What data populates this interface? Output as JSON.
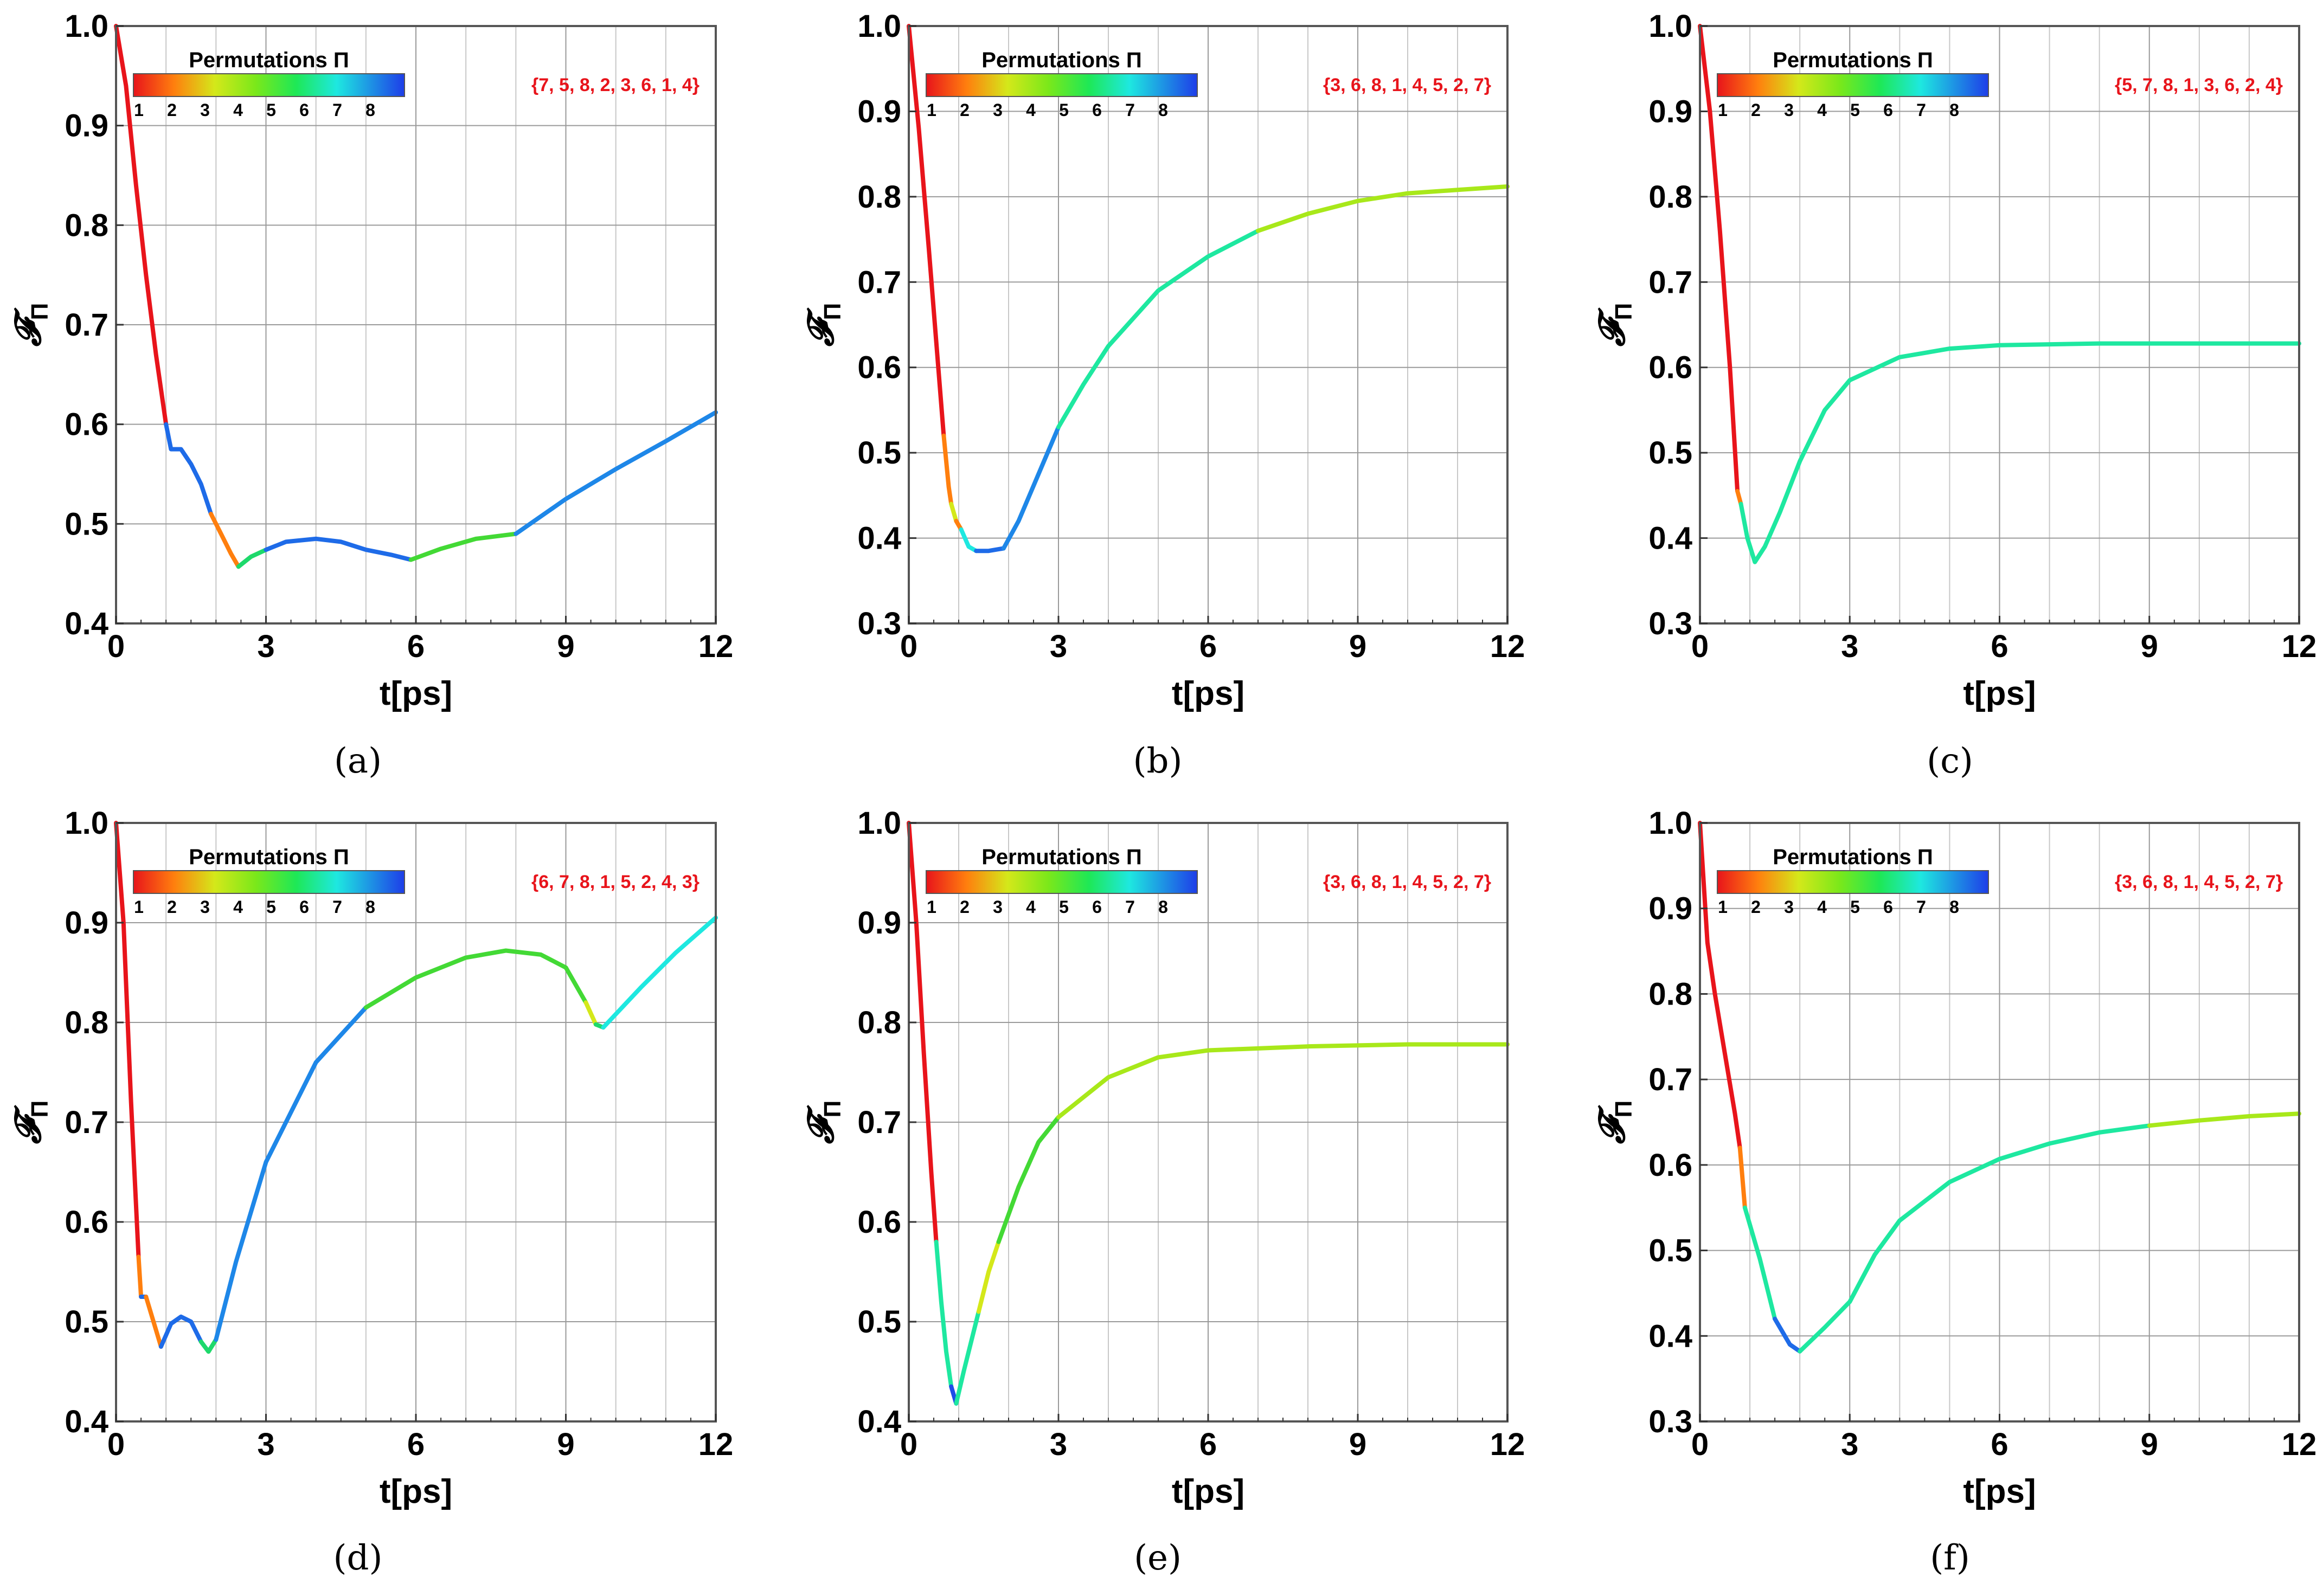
{
  "figure": {
    "xlabel": "t[ps]",
    "ylabel": "𝓕",
    "ylabel_sub": "Π",
    "legend_title": "Permutations Π",
    "legend_numbers": [
      "1",
      "2",
      "3",
      "4",
      "5",
      "6",
      "7",
      "8"
    ],
    "legend_colors": [
      "#e8141b",
      "#ff7f0e",
      "#d4e81a",
      "#7be81a",
      "#1ee856",
      "#1ee8c3",
      "#1ea0f0",
      "#1e4de8"
    ]
  },
  "chart_data": [
    {
      "id": "a",
      "type": "line",
      "caption": "(a)",
      "permutation": "{7, 5, 8, 2, 3, 6, 1, 4}",
      "xlim": [
        0,
        12
      ],
      "ylim": [
        0.4,
        1.0
      ],
      "xticks": [
        "0",
        "3",
        "6",
        "9",
        "12"
      ],
      "yticks": [
        "0.4",
        "0.5",
        "0.6",
        "0.7",
        "0.8",
        "0.9",
        "1.0"
      ],
      "xlabel": "t[ps]",
      "ylabel": "𝓕Π",
      "segments": [
        {
          "color": "#e8141b",
          "points": [
            [
              0,
              1.0
            ],
            [
              0.2,
              0.94
            ],
            [
              0.4,
              0.84
            ],
            [
              0.6,
              0.75
            ],
            [
              0.8,
              0.67
            ],
            [
              1.0,
              0.6
            ]
          ]
        },
        {
          "color": "#1e6be8",
          "points": [
            [
              1.0,
              0.6
            ],
            [
              1.1,
              0.575
            ],
            [
              1.3,
              0.575
            ],
            [
              1.5,
              0.56
            ],
            [
              1.7,
              0.54
            ],
            [
              1.9,
              0.51
            ]
          ]
        },
        {
          "color": "#ff7f0e",
          "points": [
            [
              1.9,
              0.51
            ],
            [
              2.1,
              0.49
            ],
            [
              2.3,
              0.47
            ],
            [
              2.45,
              0.457
            ]
          ]
        },
        {
          "color": "#1ed96b",
          "points": [
            [
              2.45,
              0.457
            ],
            [
              2.7,
              0.467
            ],
            [
              3.0,
              0.474
            ]
          ]
        },
        {
          "color": "#1e6be8",
          "points": [
            [
              3.0,
              0.474
            ],
            [
              3.4,
              0.482
            ],
            [
              4.0,
              0.485
            ],
            [
              4.5,
              0.482
            ],
            [
              5.0,
              0.474
            ],
            [
              5.5,
              0.469
            ],
            [
              5.9,
              0.464
            ]
          ]
        },
        {
          "color": "#43d935",
          "points": [
            [
              5.9,
              0.464
            ],
            [
              6.5,
              0.475
            ],
            [
              7.2,
              0.485
            ],
            [
              8.0,
              0.49
            ]
          ]
        },
        {
          "color": "#1e87e8",
          "points": [
            [
              8.0,
              0.49
            ],
            [
              9.0,
              0.525
            ],
            [
              10.0,
              0.555
            ],
            [
              11.0,
              0.583
            ],
            [
              12.0,
              0.612
            ]
          ]
        }
      ]
    },
    {
      "id": "b",
      "type": "line",
      "caption": "(b)",
      "permutation": "{3, 6, 8, 1, 4, 5, 2, 7}",
      "xlim": [
        0,
        12
      ],
      "ylim": [
        0.3,
        1.0
      ],
      "xticks": [
        "0",
        "3",
        "6",
        "9",
        "12"
      ],
      "yticks": [
        "0.3",
        "0.4",
        "0.5",
        "0.6",
        "0.7",
        "0.8",
        "0.9",
        "1.0"
      ],
      "xlabel": "t[ps]",
      "ylabel": "𝓕Π",
      "segments": [
        {
          "color": "#e8141b",
          "points": [
            [
              0,
              1.0
            ],
            [
              0.2,
              0.88
            ],
            [
              0.4,
              0.74
            ],
            [
              0.55,
              0.63
            ],
            [
              0.7,
              0.52
            ]
          ]
        },
        {
          "color": "#ff7f0e",
          "points": [
            [
              0.7,
              0.52
            ],
            [
              0.8,
              0.46
            ],
            [
              0.85,
              0.44
            ]
          ]
        },
        {
          "color": "#d4e81a",
          "points": [
            [
              0.85,
              0.44
            ],
            [
              0.95,
              0.42
            ]
          ]
        },
        {
          "color": "#ff7f0e",
          "points": [
            [
              0.95,
              0.42
            ],
            [
              1.05,
              0.41
            ]
          ]
        },
        {
          "color": "#1ee8e0",
          "points": [
            [
              1.05,
              0.41
            ],
            [
              1.2,
              0.39
            ],
            [
              1.35,
              0.385
            ]
          ]
        },
        {
          "color": "#1e6be8",
          "points": [
            [
              1.35,
              0.385
            ],
            [
              1.6,
              0.385
            ],
            [
              1.9,
              0.388
            ]
          ]
        },
        {
          "color": "#1e87e8",
          "points": [
            [
              1.9,
              0.388
            ],
            [
              2.2,
              0.42
            ],
            [
              2.6,
              0.475
            ],
            [
              3.0,
              0.53
            ]
          ]
        },
        {
          "color": "#1ee8a0",
          "points": [
            [
              3.0,
              0.53
            ],
            [
              3.5,
              0.58
            ],
            [
              4.0,
              0.625
            ],
            [
              5.0,
              0.69
            ],
            [
              6.0,
              0.73
            ],
            [
              7.0,
              0.76
            ]
          ]
        },
        {
          "color": "#a8e81a",
          "points": [
            [
              7.0,
              0.76
            ],
            [
              8.0,
              0.78
            ],
            [
              9.0,
              0.795
            ],
            [
              10.0,
              0.804
            ],
            [
              11.0,
              0.808
            ],
            [
              12.0,
              0.812
            ]
          ]
        }
      ]
    },
    {
      "id": "c",
      "type": "line",
      "caption": "(c)",
      "permutation": "{5, 7, 8, 1, 3, 6, 2, 4}",
      "xlim": [
        0,
        12
      ],
      "ylim": [
        0.3,
        1.0
      ],
      "xticks": [
        "0",
        "3",
        "6",
        "9",
        "12"
      ],
      "yticks": [
        "0.3",
        "0.4",
        "0.5",
        "0.6",
        "0.7",
        "0.8",
        "0.9",
        "1.0"
      ],
      "xlabel": "t[ps]",
      "ylabel": "𝓕Π",
      "segments": [
        {
          "color": "#e8141b",
          "points": [
            [
              0,
              1.0
            ],
            [
              0.2,
              0.9
            ],
            [
              0.4,
              0.76
            ],
            [
              0.6,
              0.6
            ],
            [
              0.75,
              0.455
            ]
          ]
        },
        {
          "color": "#ff7f0e",
          "points": [
            [
              0.75,
              0.455
            ],
            [
              0.82,
              0.44
            ]
          ]
        },
        {
          "color": "#1ee8a0",
          "points": [
            [
              0.82,
              0.44
            ],
            [
              0.95,
              0.4
            ],
            [
              1.1,
              0.372
            ],
            [
              1.3,
              0.39
            ],
            [
              1.6,
              0.43
            ],
            [
              2.0,
              0.49
            ],
            [
              2.5,
              0.55
            ],
            [
              3.0,
              0.585
            ],
            [
              4.0,
              0.612
            ],
            [
              5.0,
              0.622
            ],
            [
              6.0,
              0.626
            ],
            [
              8.0,
              0.628
            ],
            [
              10.0,
              0.628
            ],
            [
              12.0,
              0.628
            ]
          ]
        }
      ]
    },
    {
      "id": "d",
      "type": "line",
      "caption": "(d)",
      "permutation": "{6, 7, 8, 1, 5, 2, 4, 3}",
      "xlim": [
        0,
        12
      ],
      "ylim": [
        0.4,
        1.0
      ],
      "xticks": [
        "0",
        "3",
        "6",
        "9",
        "12"
      ],
      "yticks": [
        "0.4",
        "0.5",
        "0.6",
        "0.7",
        "0.8",
        "0.9",
        "1.0"
      ],
      "xlabel": "t[ps]",
      "ylabel": "𝓕Π",
      "segments": [
        {
          "color": "#e8141b",
          "points": [
            [
              0,
              1.0
            ],
            [
              0.15,
              0.9
            ],
            [
              0.3,
              0.72
            ],
            [
              0.45,
              0.565
            ]
          ]
        },
        {
          "color": "#ff7f0e",
          "points": [
            [
              0.45,
              0.565
            ],
            [
              0.5,
              0.525
            ]
          ]
        },
        {
          "color": "#1e6be8",
          "points": [
            [
              0.5,
              0.525
            ],
            [
              0.6,
              0.525
            ]
          ]
        },
        {
          "color": "#ff7f0e",
          "points": [
            [
              0.6,
              0.525
            ],
            [
              0.75,
              0.5
            ],
            [
              0.9,
              0.475
            ]
          ]
        },
        {
          "color": "#1e6be8",
          "points": [
            [
              0.9,
              0.475
            ],
            [
              1.1,
              0.498
            ],
            [
              1.3,
              0.505
            ],
            [
              1.5,
              0.5
            ],
            [
              1.7,
              0.48
            ]
          ]
        },
        {
          "color": "#1ed96b",
          "points": [
            [
              1.7,
              0.48
            ],
            [
              1.85,
              0.47
            ],
            [
              2.0,
              0.482
            ]
          ]
        },
        {
          "color": "#1e87e8",
          "points": [
            [
              2.0,
              0.482
            ],
            [
              2.4,
              0.56
            ],
            [
              3.0,
              0.66
            ],
            [
              4.0,
              0.76
            ],
            [
              5.0,
              0.815
            ]
          ]
        },
        {
          "color": "#43d935",
          "points": [
            [
              5.0,
              0.815
            ],
            [
              6.0,
              0.845
            ],
            [
              7.0,
              0.865
            ],
            [
              7.8,
              0.872
            ],
            [
              8.5,
              0.868
            ],
            [
              9.0,
              0.855
            ],
            [
              9.4,
              0.82
            ]
          ]
        },
        {
          "color": "#d4e81a",
          "points": [
            [
              9.4,
              0.82
            ],
            [
              9.6,
              0.798
            ]
          ]
        },
        {
          "color": "#1ed96b",
          "points": [
            [
              9.6,
              0.798
            ],
            [
              9.75,
              0.795
            ]
          ]
        },
        {
          "color": "#1ee8e0",
          "points": [
            [
              9.75,
              0.795
            ],
            [
              10.5,
              0.835
            ],
            [
              11.2,
              0.87
            ],
            [
              12.0,
              0.905
            ]
          ]
        }
      ]
    },
    {
      "id": "e",
      "type": "line",
      "caption": "(e)",
      "permutation": "{3, 6, 8, 1, 4, 5, 2, 7}",
      "xlim": [
        0,
        12
      ],
      "ylim": [
        0.4,
        1.0
      ],
      "xticks": [
        "0",
        "3",
        "6",
        "9",
        "12"
      ],
      "yticks": [
        "0.4",
        "0.5",
        "0.6",
        "0.7",
        "0.8",
        "0.9",
        "1.0"
      ],
      "xlabel": "t[ps]",
      "ylabel": "𝓕Π",
      "segments": [
        {
          "color": "#e8141b",
          "points": [
            [
              0,
              1.0
            ],
            [
              0.15,
              0.9
            ],
            [
              0.3,
              0.77
            ],
            [
              0.45,
              0.65
            ],
            [
              0.55,
              0.58
            ]
          ]
        },
        {
          "color": "#1ee8a0",
          "points": [
            [
              0.55,
              0.58
            ],
            [
              0.65,
              0.52
            ],
            [
              0.75,
              0.47
            ],
            [
              0.85,
              0.435
            ]
          ]
        },
        {
          "color": "#1e4de8",
          "points": [
            [
              0.85,
              0.435
            ],
            [
              0.95,
              0.418
            ]
          ]
        },
        {
          "color": "#1ee8a0",
          "points": [
            [
              0.95,
              0.418
            ],
            [
              1.1,
              0.45
            ],
            [
              1.3,
              0.49
            ],
            [
              1.4,
              0.51
            ]
          ]
        },
        {
          "color": "#d4e81a",
          "points": [
            [
              1.4,
              0.51
            ],
            [
              1.6,
              0.55
            ],
            [
              1.8,
              0.58
            ]
          ]
        },
        {
          "color": "#43d935",
          "points": [
            [
              1.8,
              0.58
            ],
            [
              2.2,
              0.635
            ],
            [
              2.6,
              0.68
            ],
            [
              3.0,
              0.705
            ]
          ]
        },
        {
          "color": "#a8e81a",
          "points": [
            [
              3.0,
              0.705
            ],
            [
              4.0,
              0.745
            ],
            [
              5.0,
              0.765
            ],
            [
              6.0,
              0.772
            ],
            [
              8.0,
              0.776
            ],
            [
              10.0,
              0.778
            ],
            [
              12.0,
              0.778
            ]
          ]
        }
      ]
    },
    {
      "id": "f",
      "type": "line",
      "caption": "(f)",
      "permutation": "{3, 6, 8, 1, 4, 5, 2, 7}",
      "xlim": [
        0,
        12
      ],
      "ylim": [
        0.3,
        1.0
      ],
      "xticks": [
        "0",
        "3",
        "6",
        "9",
        "12"
      ],
      "yticks": [
        "0.3",
        "0.4",
        "0.5",
        "0.6",
        "0.7",
        "0.8",
        "0.9",
        "1.0"
      ],
      "xlabel": "t[ps]",
      "ylabel": "𝓕Π",
      "segments": [
        {
          "color": "#e8141b",
          "points": [
            [
              0,
              1.0
            ],
            [
              0.15,
              0.86
            ],
            [
              0.3,
              0.8
            ],
            [
              0.5,
              0.73
            ],
            [
              0.7,
              0.66
            ],
            [
              0.8,
              0.62
            ]
          ]
        },
        {
          "color": "#ff7f0e",
          "points": [
            [
              0.8,
              0.62
            ],
            [
              0.9,
              0.55
            ]
          ]
        },
        {
          "color": "#1ee8a0",
          "points": [
            [
              0.9,
              0.55
            ],
            [
              1.2,
              0.49
            ],
            [
              1.5,
              0.42
            ]
          ]
        },
        {
          "color": "#1e6be8",
          "points": [
            [
              1.5,
              0.42
            ],
            [
              1.8,
              0.39
            ],
            [
              2.0,
              0.382
            ]
          ]
        },
        {
          "color": "#1ee8a0",
          "points": [
            [
              2.0,
              0.382
            ],
            [
              2.5,
              0.41
            ],
            [
              3.0,
              0.44
            ],
            [
              3.5,
              0.495
            ],
            [
              4.0,
              0.535
            ],
            [
              5.0,
              0.58
            ],
            [
              6.0,
              0.607
            ],
            [
              7.0,
              0.625
            ],
            [
              8.0,
              0.638
            ],
            [
              9.0,
              0.646
            ]
          ]
        },
        {
          "color": "#a8e81a",
          "points": [
            [
              9.0,
              0.646
            ],
            [
              10.0,
              0.652
            ],
            [
              11.0,
              0.657
            ],
            [
              12.0,
              0.66
            ]
          ]
        }
      ]
    }
  ]
}
